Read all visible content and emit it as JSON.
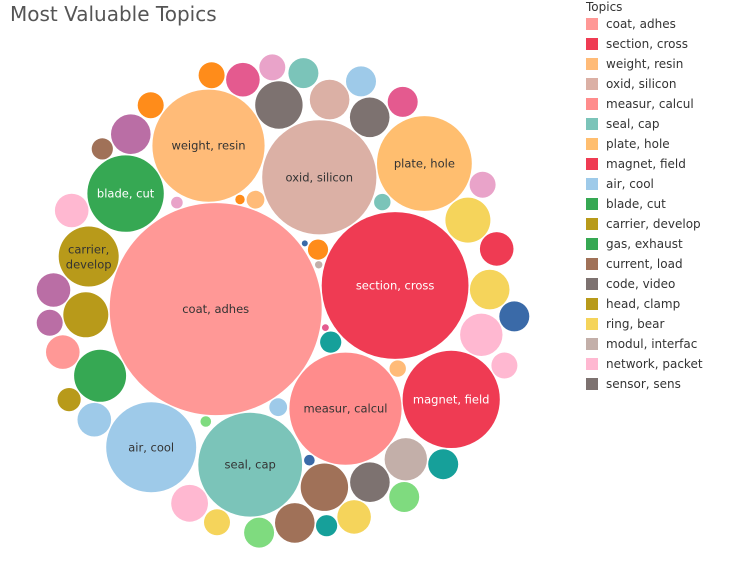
{
  "chart_data": {
    "type": "bubble",
    "title": "Most Valuable Topics",
    "legend_title": "Topics",
    "legend_position": "right",
    "categories": [
      {
        "name": "coat, adhes",
        "color": "#ff9896"
      },
      {
        "name": "section, cross",
        "color": "#ef3b53"
      },
      {
        "name": "weight, resin",
        "color": "#ffbb78"
      },
      {
        "name": "oxid, silicon",
        "color": "#dbb0a5"
      },
      {
        "name": "measur, calcul",
        "color": "#ff8c8c"
      },
      {
        "name": "seal, cap",
        "color": "#7bc4b9"
      },
      {
        "name": "plate, hole",
        "color": "#ffbe6f"
      },
      {
        "name": "magnet, field",
        "color": "#ef3b53"
      },
      {
        "name": "air, cool",
        "color": "#9ecae9"
      },
      {
        "name": "blade, cut",
        "color": "#36a853"
      },
      {
        "name": "carrier, develop",
        "color": "#b89a1a"
      },
      {
        "name": "gas, exhaust",
        "color": "#36a853"
      },
      {
        "name": "current, load",
        "color": "#a07158"
      },
      {
        "name": "code, video",
        "color": "#7d7270"
      },
      {
        "name": "head, clamp",
        "color": "#b89a1a"
      },
      {
        "name": "ring, bear",
        "color": "#f5d45b"
      },
      {
        "name": "modul, interfac",
        "color": "#c3afa9"
      },
      {
        "name": "network, packet",
        "color": "#ffb8d1"
      },
      {
        "name": "sensor, sens",
        "color": "#7d7270"
      }
    ],
    "bubbles": [
      {
        "label": "coat, adhes",
        "value": 100,
        "color": "#ff9896",
        "text_color": "#333333"
      },
      {
        "label": "section, cross",
        "value": 48,
        "color": "#ef3b53",
        "text_color": "#ffffff"
      },
      {
        "label": "oxid, silicon",
        "value": 29,
        "color": "#dbb0a5",
        "text_color": "#333333"
      },
      {
        "label": "measur, calcul",
        "value": 28,
        "color": "#ff8c8c",
        "text_color": "#333333"
      },
      {
        "label": "weight, resin",
        "value": 28,
        "color": "#ffbb78",
        "text_color": "#333333"
      },
      {
        "label": "seal, cap",
        "value": 24,
        "color": "#7bc4b9",
        "text_color": "#333333"
      },
      {
        "label": "magnet, field",
        "value": 21,
        "color": "#ef3b53",
        "text_color": "#ffffff"
      },
      {
        "label": "plate, hole",
        "value": 20,
        "color": "#ffbe6f",
        "text_color": "#333333"
      },
      {
        "label": "air, cool",
        "value": 18,
        "color": "#9ecae9",
        "text_color": "#333333"
      },
      {
        "label": "blade, cut",
        "value": 13,
        "color": "#36a853",
        "text_color": "#ffffff"
      },
      {
        "label": "carrier, develop",
        "value": 8,
        "color": "#b89a1a",
        "text_color": "#333333"
      },
      {
        "label": "",
        "value": 6,
        "color": "#36a853"
      },
      {
        "label": "",
        "value": 5,
        "color": "#a07158"
      },
      {
        "label": "",
        "value": 5,
        "color": "#7d7270"
      },
      {
        "label": "",
        "value": 4.5,
        "color": "#b89a1a"
      },
      {
        "label": "",
        "value": 4.5,
        "color": "#f5d45b"
      },
      {
        "label": "",
        "value": 4,
        "color": "#c3afa9"
      },
      {
        "label": "",
        "value": 4,
        "color": "#ffb8d1"
      },
      {
        "label": "",
        "value": 3.5,
        "color": "#7d7270"
      },
      {
        "label": "",
        "value": 3.5,
        "color": "#7d7270"
      },
      {
        "label": "",
        "value": 3.5,
        "color": "#dbb0a5"
      },
      {
        "label": "",
        "value": 3.5,
        "color": "#f5d45b"
      },
      {
        "label": "",
        "value": 3.5,
        "color": "#ba6ea5"
      },
      {
        "label": "",
        "value": 3.5,
        "color": "#a07158"
      },
      {
        "label": "",
        "value": 3,
        "color": "#ffb8d1"
      },
      {
        "label": "",
        "value": 2.5,
        "color": "#ef3b53"
      },
      {
        "label": "",
        "value": 2.5,
        "color": "#9ecae9"
      },
      {
        "label": "",
        "value": 2.5,
        "color": "#e45a8f"
      },
      {
        "label": "",
        "value": 2.5,
        "color": "#ff9896"
      },
      {
        "label": "",
        "value": 2.5,
        "color": "#ffb8d1"
      },
      {
        "label": "",
        "value": 2.5,
        "color": "#ba6ea5"
      },
      {
        "label": "",
        "value": 2.5,
        "color": "#f5d45b"
      },
      {
        "label": "",
        "value": 2,
        "color": "#7bc4b9"
      },
      {
        "label": "",
        "value": 2,
        "color": "#16a09a"
      },
      {
        "label": "",
        "value": 2,
        "color": "#e45a8f"
      },
      {
        "label": "",
        "value": 2,
        "color": "#9ecae9"
      },
      {
        "label": "",
        "value": 2,
        "color": "#7fdb7f"
      },
      {
        "label": "",
        "value": 2,
        "color": "#3a6aa8"
      },
      {
        "label": "",
        "value": 2,
        "color": "#7fdb7f"
      },
      {
        "label": "",
        "value": 1.5,
        "color": "#e9a3c9"
      },
      {
        "label": "",
        "value": 1.5,
        "color": "#e9a3c9"
      },
      {
        "label": "",
        "value": 1.5,
        "color": "#f5d45b"
      },
      {
        "label": "",
        "value": 1.5,
        "color": "#ba6ea5"
      },
      {
        "label": "",
        "value": 1.5,
        "color": "#ffb8d1"
      },
      {
        "label": "",
        "value": 1.5,
        "color": "#ff8c1a"
      },
      {
        "label": "",
        "value": 1.5,
        "color": "#ff8c1a"
      },
      {
        "label": "",
        "value": 1.2,
        "color": "#b89a1a"
      },
      {
        "label": "",
        "value": 1,
        "color": "#16a09a"
      },
      {
        "label": "",
        "value": 1,
        "color": "#16a09a"
      },
      {
        "label": "",
        "value": 1,
        "color": "#a07158"
      },
      {
        "label": "",
        "value": 0.9,
        "color": "#ff8c1a"
      },
      {
        "label": "",
        "value": 0.7,
        "color": "#ffbb78"
      },
      {
        "label": "",
        "value": 0.7,
        "color": "#9ecae9"
      },
      {
        "label": "",
        "value": 0.6,
        "color": "#ffbb78"
      },
      {
        "label": "",
        "value": 0.6,
        "color": "#7bc4b9"
      },
      {
        "label": "",
        "value": 0.3,
        "color": "#e9a3c9"
      },
      {
        "label": "",
        "value": 0.25,
        "color": "#7fdb7f"
      },
      {
        "label": "",
        "value": 0.25,
        "color": "#3a6aa8"
      },
      {
        "label": "",
        "value": 0.2,
        "color": "#ff8c1a"
      },
      {
        "label": "",
        "value": 0.12,
        "color": "#c3afa9"
      },
      {
        "label": "",
        "value": 0.1,
        "color": "#e45a8f"
      },
      {
        "label": "",
        "value": 0.08,
        "color": "#3a6aa8"
      }
    ]
  }
}
